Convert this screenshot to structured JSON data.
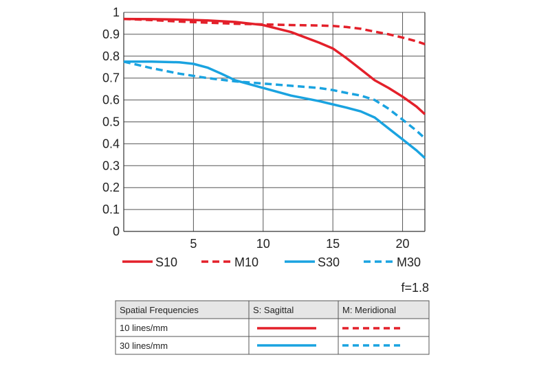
{
  "chart_data": {
    "type": "line",
    "xlim": [
      0,
      21.6
    ],
    "ylim": [
      0,
      1
    ],
    "x_ticks": [
      "5",
      "10",
      "15",
      "20"
    ],
    "y_ticks": [
      "0",
      "0.1",
      "0.2",
      "0.3",
      "0.4",
      "0.5",
      "0.6",
      "0.7",
      "0.8",
      "0.9",
      "1"
    ],
    "grid": true,
    "series": [
      {
        "name": "S10",
        "color": "#e3202a",
        "dash": false,
        "x": [
          0,
          2,
          4,
          6,
          8,
          10,
          12,
          14,
          15,
          16,
          17,
          18,
          19,
          20,
          21,
          21.6
        ],
        "y": [
          0.97,
          0.969,
          0.967,
          0.963,
          0.956,
          0.942,
          0.91,
          0.862,
          0.835,
          0.79,
          0.74,
          0.69,
          0.655,
          0.615,
          0.57,
          0.535
        ]
      },
      {
        "name": "M10",
        "color": "#e3202a",
        "dash": true,
        "x": [
          0,
          2,
          4,
          6,
          8,
          10,
          12,
          14,
          15,
          16,
          17,
          18,
          19,
          20,
          21,
          21.6
        ],
        "y": [
          0.97,
          0.965,
          0.958,
          0.953,
          0.948,
          0.945,
          0.942,
          0.94,
          0.938,
          0.933,
          0.925,
          0.912,
          0.9,
          0.885,
          0.868,
          0.855
        ]
      },
      {
        "name": "S30",
        "color": "#1aa3e0",
        "dash": false,
        "x": [
          0,
          2,
          4,
          5,
          6,
          7,
          8,
          10,
          12,
          14,
          15,
          16,
          17,
          18,
          19,
          20,
          21,
          21.6
        ],
        "y": [
          0.775,
          0.775,
          0.772,
          0.765,
          0.748,
          0.72,
          0.69,
          0.655,
          0.62,
          0.595,
          0.58,
          0.565,
          0.548,
          0.52,
          0.47,
          0.42,
          0.37,
          0.335
        ]
      },
      {
        "name": "M30",
        "color": "#1aa3e0",
        "dash": true,
        "x": [
          0,
          2,
          4,
          6,
          8,
          10,
          12,
          14,
          15,
          16,
          17,
          18,
          19,
          20,
          21,
          21.6
        ],
        "y": [
          0.775,
          0.745,
          0.72,
          0.7,
          0.685,
          0.675,
          0.665,
          0.655,
          0.645,
          0.632,
          0.62,
          0.6,
          0.56,
          0.51,
          0.46,
          0.425
        ]
      }
    ]
  },
  "aperture_label": "f=1.8",
  "table": {
    "headers": [
      "Spatial Frequencies",
      "S: Sagittal",
      "M: Meridional"
    ],
    "rows": [
      {
        "label": "10 lines/mm",
        "color": "#e3202a"
      },
      {
        "label": "30 lines/mm",
        "color": "#1aa3e0"
      }
    ]
  }
}
